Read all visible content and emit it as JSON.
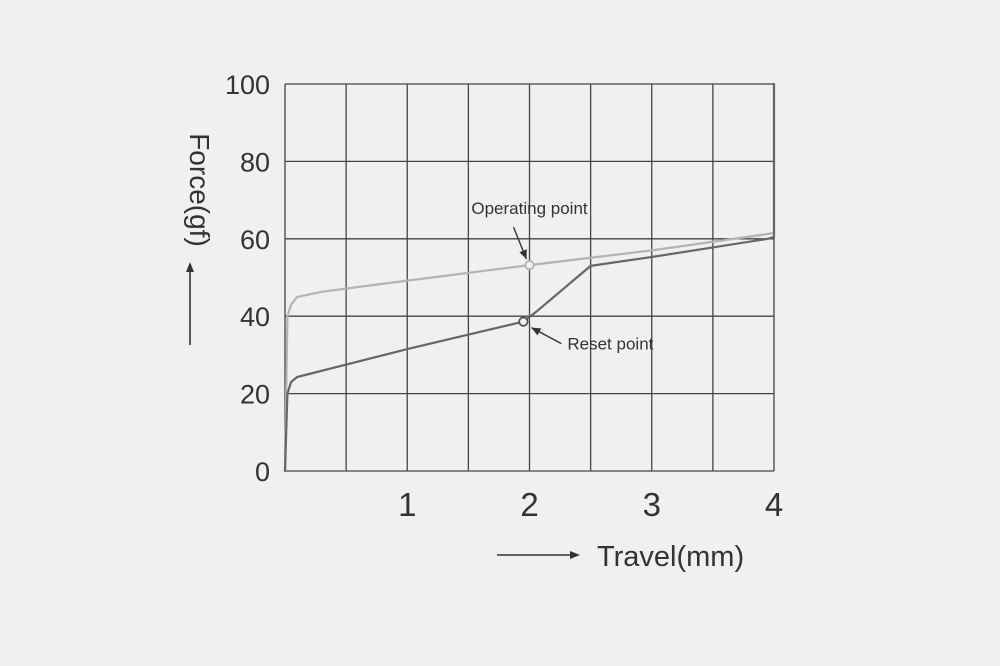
{
  "chart_data": {
    "type": "line",
    "title": "",
    "xlabel": "Travel(mm)",
    "ylabel": "Force(gf)",
    "xlim": [
      0,
      4
    ],
    "ylim": [
      0,
      100
    ],
    "x_ticks": [
      {
        "value": 1,
        "label": "1"
      },
      {
        "value": 2,
        "label": "2"
      },
      {
        "value": 3,
        "label": "3"
      },
      {
        "value": 4,
        "label": "4"
      }
    ],
    "y_ticks": [
      {
        "value": 0,
        "label": "0"
      },
      {
        "value": 20,
        "label": "20"
      },
      {
        "value": 40,
        "label": "40"
      },
      {
        "value": 60,
        "label": "60"
      },
      {
        "value": 80,
        "label": "80"
      },
      {
        "value": 100,
        "label": "100"
      }
    ],
    "grid": true,
    "x_grid_step": 0.5,
    "legend": "none",
    "series": [
      {
        "color": "#b3b3b3",
        "x": [
          0,
          0.02,
          0.05,
          0.1,
          0.3,
          1.0,
          2.0,
          3.0,
          3.9,
          4.0
        ],
        "y": [
          0,
          40,
          43,
          45,
          46.3,
          49.2,
          53.2,
          57.0,
          61.0,
          61.5
        ]
      },
      {
        "color": "#666666",
        "x": [
          0,
          0.02,
          0.05,
          0.1,
          1.0,
          1.95,
          2.05,
          2.5,
          3.0,
          3.95,
          4.0,
          4.0
        ],
        "y": [
          0,
          20,
          23,
          24.3,
          31.5,
          38.6,
          41,
          53,
          55.3,
          60,
          60.5,
          100
        ]
      }
    ],
    "annotations": [
      {
        "text": "Operating point",
        "x": 2.0,
        "y": 53.2
      },
      {
        "text": "Reset point",
        "x": 1.95,
        "y": 38.6
      }
    ]
  }
}
